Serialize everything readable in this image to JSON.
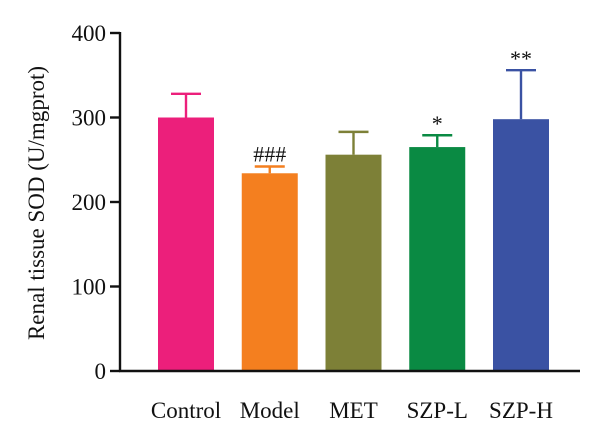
{
  "chart_data": {
    "type": "bar",
    "ylabel": "Renal tissue SOD (U/mgprot)",
    "ylim": [
      0,
      400
    ],
    "yticks": [
      0,
      100,
      200,
      300,
      400
    ],
    "categories": [
      "Control",
      "Model",
      "MET",
      "SZP-L",
      "SZP-H"
    ],
    "values": [
      300,
      234,
      256,
      265,
      298
    ],
    "errors": [
      28,
      8,
      27,
      14,
      58
    ],
    "annotations": [
      "",
      "###",
      "",
      "*",
      "**"
    ],
    "colors": [
      "#ec1f7b",
      "#f47f1f",
      "#7d8037",
      "#0a8a43",
      "#3a52a3"
    ],
    "grid": false,
    "legend": "none"
  }
}
